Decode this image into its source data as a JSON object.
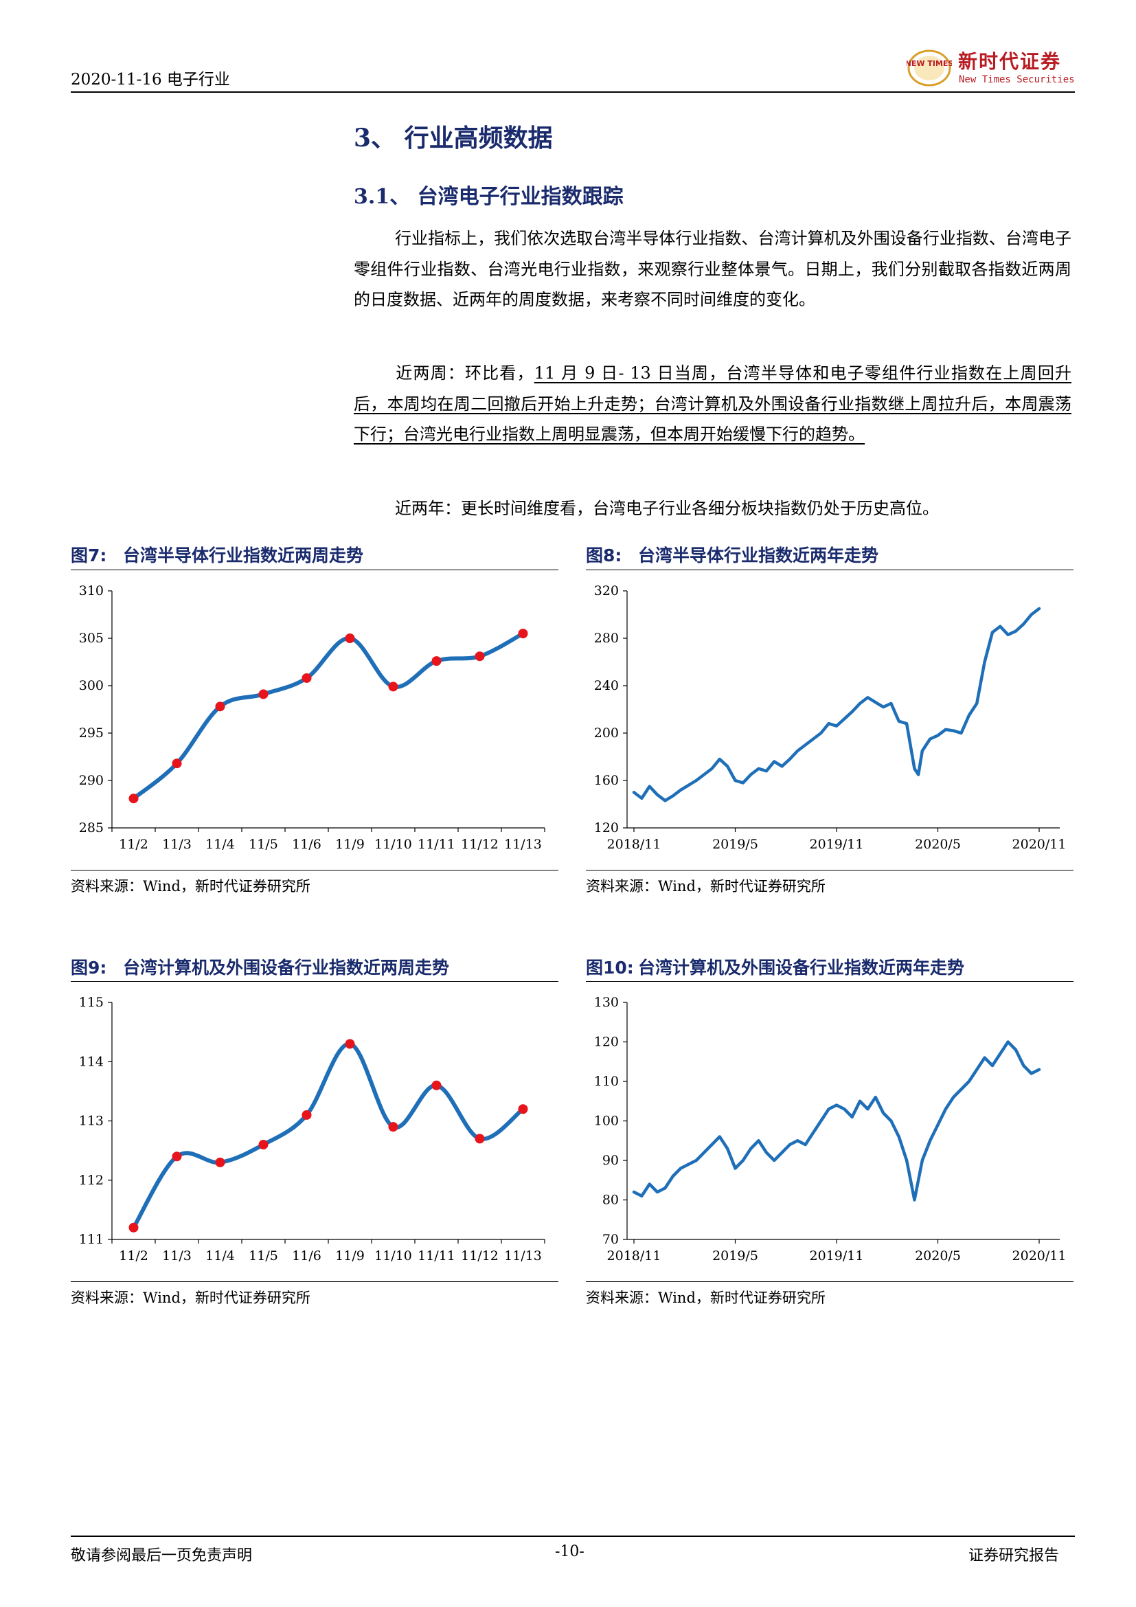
{
  "header": {
    "date_industry": "2020-11-16  电子行业",
    "logo_mark_text": "NEW TIMES",
    "logo_cn": "新时代证券",
    "logo_en": "New Times Securities"
  },
  "section_heading": "3、 行业高频数据",
  "subsection_heading": "3.1、 台湾电子行业指数跟踪",
  "paragraphs": {
    "p1": "行业指标上，我们依次选取台湾半导体行业指数、台湾计算机及外围设备行业指数、台湾电子零组件行业指数、台湾光电行业指数，来观察行业整体景气。日期上，我们分别截取各指数近两周的日度数据、近两年的周度数据，来考察不同时间维度的变化。",
    "p2_lead": "近两周：环比看，",
    "p2_underlined": "11 月 9 日- 13 日当周，台湾半导体和电子零组件行业指数在上周回升后，本周均在周二回撤后开始上升走势；台湾计算机及外围设备行业指数继上周拉升后，本周震荡下行；台湾光电行业指数上周明显震荡，但本周开始缓慢下行的趋势。",
    "p3": "近两年：更长时间维度看，台湾电子行业各细分板块指数仍处于历史高位。"
  },
  "figures": [
    {
      "num": "图7:",
      "title": "台湾半导体行业指数近两周走势",
      "source": "资料来源：Wind，新时代证券研究所"
    },
    {
      "num": "图8:",
      "title": "台湾半导体行业指数近两年走势",
      "source": "资料来源：Wind，新时代证券研究所"
    },
    {
      "num": "图9:",
      "title": "台湾计算机及外围设备行业指数近两周走势",
      "source": "资料来源：Wind，新时代证券研究所"
    },
    {
      "num": "图10:",
      "title": "台湾计算机及外围设备行业指数近两年走势",
      "source": "资料来源：Wind，新时代证券研究所"
    }
  ],
  "colors": {
    "line": "#1f6fb8",
    "marker": "#e8141b",
    "heading": "#1a2b6d",
    "logo": "#b81c22"
  },
  "chart_data": [
    {
      "type": "line",
      "title": "台湾半导体行业指数近两周走势",
      "categories": [
        "11/2",
        "11/3",
        "11/4",
        "11/5",
        "11/6",
        "11/9",
        "11/10",
        "11/11",
        "11/12",
        "11/13"
      ],
      "values": [
        288.1,
        291.8,
        297.8,
        299.1,
        300.8,
        305.0,
        299.9,
        302.6,
        303.1,
        305.5
      ],
      "ylim": [
        285,
        310
      ],
      "yticks": [
        285,
        290,
        295,
        300,
        305,
        310
      ],
      "markers": true
    },
    {
      "type": "line",
      "title": "台湾半导体行业指数近两年走势",
      "x_tick_labels": [
        "2018/11",
        "2019/5",
        "2019/11",
        "2020/5",
        "2020/11"
      ],
      "x": [
        0,
        2,
        4,
        6,
        8,
        10,
        12,
        14,
        16,
        18,
        20,
        22,
        24,
        26,
        28,
        30,
        32,
        34,
        36,
        38,
        40,
        42,
        44,
        46,
        48,
        50,
        52,
        54,
        56,
        58,
        60,
        62,
        64,
        66,
        68,
        70,
        72,
        73,
        74,
        76,
        78,
        80,
        82,
        84,
        86,
        88,
        90,
        92,
        94,
        96,
        98,
        100,
        102,
        104
      ],
      "values": [
        150,
        145,
        155,
        148,
        143,
        147,
        152,
        156,
        160,
        165,
        170,
        178,
        172,
        160,
        158,
        165,
        170,
        168,
        176,
        172,
        178,
        185,
        190,
        195,
        200,
        208,
        206,
        212,
        218,
        225,
        230,
        226,
        222,
        225,
        210,
        208,
        170,
        165,
        185,
        195,
        198,
        203,
        202,
        200,
        215,
        225,
        260,
        285,
        290,
        283,
        286,
        292,
        300,
        305
      ],
      "xlim": [
        0,
        104
      ],
      "ylim": [
        120,
        320
      ],
      "yticks": [
        120,
        160,
        200,
        240,
        280,
        320
      ],
      "markers": false
    },
    {
      "type": "line",
      "title": "台湾计算机及外围设备行业指数近两周走势",
      "categories": [
        "11/2",
        "11/3",
        "11/4",
        "11/5",
        "11/6",
        "11/9",
        "11/10",
        "11/11",
        "11/12",
        "11/13"
      ],
      "values": [
        111.2,
        112.4,
        112.3,
        112.6,
        113.1,
        114.3,
        112.9,
        113.6,
        112.7,
        113.2
      ],
      "ylim": [
        111,
        115
      ],
      "yticks": [
        111,
        112,
        113,
        114,
        115
      ],
      "markers": true
    },
    {
      "type": "line",
      "title": "台湾计算机及外围设备行业指数近两年走势",
      "x_tick_labels": [
        "2018/11",
        "2019/5",
        "2019/11",
        "2020/5",
        "2020/11"
      ],
      "x": [
        0,
        2,
        4,
        6,
        8,
        10,
        12,
        14,
        16,
        18,
        20,
        22,
        24,
        26,
        28,
        30,
        32,
        34,
        36,
        38,
        40,
        42,
        44,
        46,
        48,
        50,
        52,
        54,
        56,
        58,
        60,
        62,
        64,
        66,
        68,
        70,
        72,
        73,
        74,
        76,
        78,
        80,
        82,
        84,
        86,
        88,
        90,
        92,
        94,
        96,
        98,
        100,
        102,
        104
      ],
      "values": [
        82,
        81,
        84,
        82,
        83,
        86,
        88,
        89,
        90,
        92,
        94,
        96,
        93,
        88,
        90,
        93,
        95,
        92,
        90,
        92,
        94,
        95,
        94,
        97,
        100,
        103,
        104,
        103,
        101,
        105,
        103,
        106,
        102,
        100,
        96,
        90,
        80,
        85,
        90,
        95,
        99,
        103,
        106,
        108,
        110,
        113,
        116,
        114,
        117,
        120,
        118,
        114,
        112,
        113
      ],
      "xlim": [
        0,
        104
      ],
      "ylim": [
        70,
        130
      ],
      "yticks": [
        70,
        80,
        90,
        100,
        110,
        120,
        130
      ],
      "markers": false
    }
  ],
  "footer": {
    "left": "敬请参阅最后一页免责声明",
    "page": "-10-",
    "right": "证券研究报告"
  }
}
